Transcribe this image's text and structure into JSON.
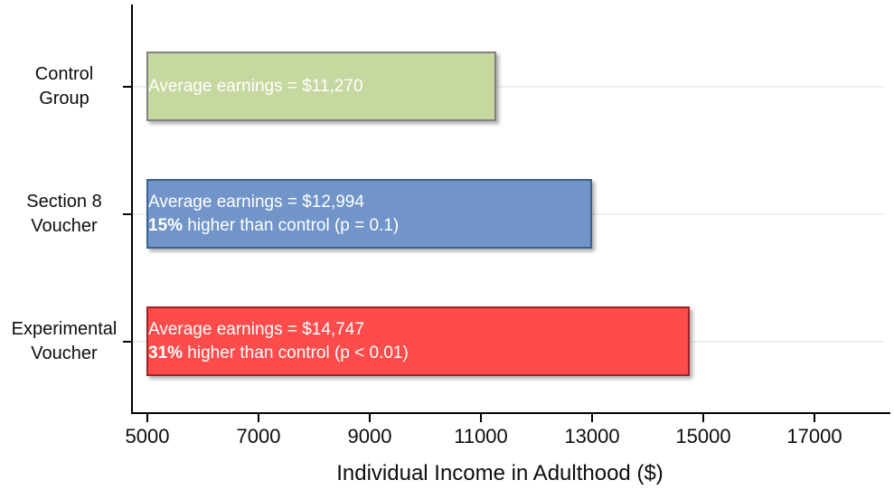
{
  "chart_data": {
    "type": "bar",
    "orientation": "horizontal",
    "title": "",
    "xlabel": "Individual Income in Adulthood ($)",
    "ylabel": "",
    "xlim": [
      5000,
      18250
    ],
    "xticks": [
      "5000",
      "7000",
      "9000",
      "11000",
      "13000",
      "15000",
      "17000"
    ],
    "xtick_values": [
      5000,
      7000,
      9000,
      11000,
      13000,
      15000,
      17000
    ],
    "grid": "light horizontal gridlines at category centers",
    "legend": "none",
    "categories": [
      "Control Group",
      "Section 8 Voucher",
      "Experimental Voucher"
    ],
    "values": [
      11270,
      12994,
      14747
    ],
    "bars": [
      {
        "category": "Control Group",
        "category_lines": [
          "Control",
          "Group"
        ],
        "value": 11270,
        "fill": "#c6d89f",
        "border": "#818181",
        "label_line1": "Average earnings = $11,270",
        "label_line2_bold": "",
        "label_line2_rest": ""
      },
      {
        "category": "Section 8 Voucher",
        "category_lines": [
          "Section 8",
          "Voucher"
        ],
        "value": 12994,
        "fill": "#7195c9",
        "border": "#3a6191",
        "label_line1": "Average earnings = $12,994",
        "label_line2_bold": "15%",
        "label_line2_rest": " higher than control (p = 0.1)"
      },
      {
        "category": "Experimental Voucher",
        "category_lines": [
          "Experimental",
          "Voucher"
        ],
        "value": 14747,
        "fill": "#fe4c4c",
        "border": "#9f2121",
        "label_line1": "Average earnings = $14,747",
        "label_line2_bold": "31%",
        "label_line2_rest": " higher than control (p < 0.01)"
      }
    ],
    "colors": {
      "gridline": "#e8eef2",
      "axis": "#000000",
      "bar_text": "#ffffff",
      "background": "#ffffff"
    }
  }
}
